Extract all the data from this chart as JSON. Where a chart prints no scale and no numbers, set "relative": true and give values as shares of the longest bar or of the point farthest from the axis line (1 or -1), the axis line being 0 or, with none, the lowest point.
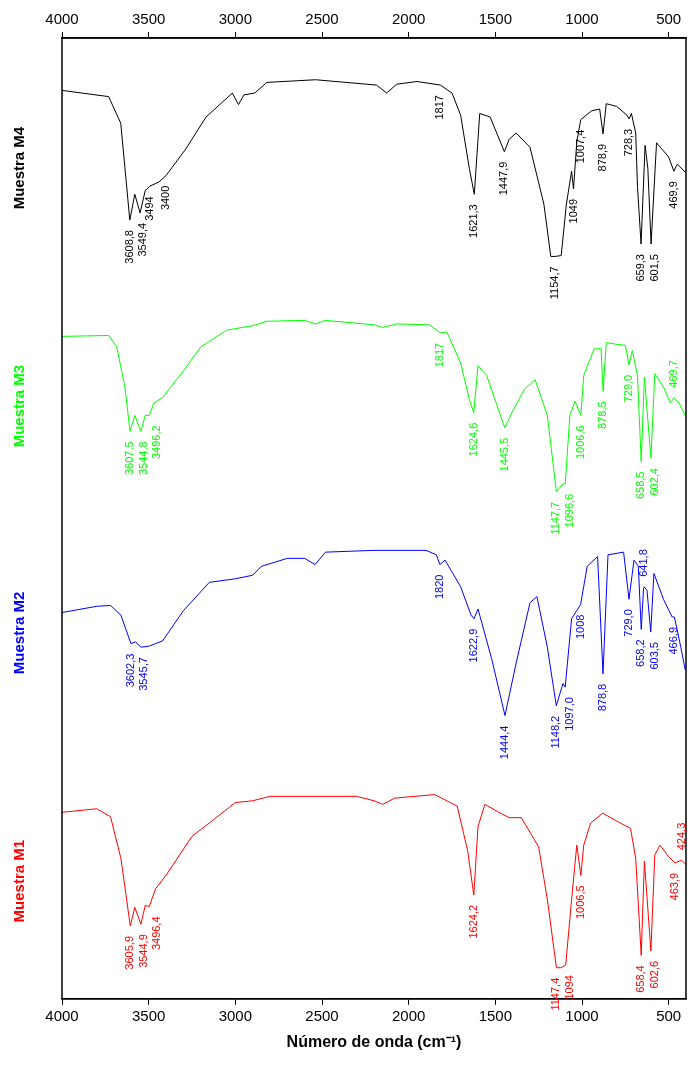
{
  "chart_data": {
    "type": "line",
    "relative": true,
    "xlabel": "Número de onda (cm⁻¹)",
    "xlim": [
      4000,
      400
    ],
    "xticks": [
      4000,
      3500,
      3000,
      2500,
      2000,
      1500,
      1000,
      500
    ],
    "x2lim": [
      4000,
      400
    ],
    "x2ticks": [
      4000,
      3500,
      3000,
      2500,
      2000,
      1500,
      1000,
      500
    ],
    "legend": false,
    "series": [
      {
        "name": "Muestra M4",
        "color": "#000000",
        "x": [
          4000,
          3731,
          3661,
          3608.8,
          3580,
          3549.4,
          3520,
          3494,
          3440,
          3400,
          3286,
          3169,
          3017,
          2982,
          2950,
          2888,
          2818,
          2537,
          2186,
          2127,
          2069,
          1952,
          1817,
          1750,
          1700,
          1650,
          1621.3,
          1590,
          1530,
          1447.9,
          1420,
          1380,
          1300,
          1220,
          1180,
          1154.7,
          1120,
          1090,
          1060,
          1049,
          1030,
          1007.4,
          945,
          898,
          878.9,
          860,
          800,
          740,
          728.3,
          715,
          690,
          680,
          659.3,
          636,
          620,
          601.5,
          570,
          500,
          469.9,
          450,
          400
        ],
        "values": [
          0.988,
          0.981,
          0.951,
          0.842,
          0.871,
          0.85,
          0.875,
          0.88,
          0.885,
          0.892,
          0.922,
          0.958,
          0.985,
          0.972,
          0.983,
          0.985,
          0.997,
          1.0,
          0.994,
          0.985,
          0.995,
          0.998,
          0.994,
          0.985,
          0.96,
          0.9,
          0.871,
          0.962,
          0.958,
          0.919,
          0.933,
          0.94,
          0.924,
          0.86,
          0.801,
          0.801,
          0.802,
          0.86,
          0.897,
          0.877,
          0.93,
          0.955,
          0.965,
          0.967,
          0.939,
          0.973,
          0.97,
          0.96,
          0.956,
          0.962,
          0.94,
          0.88,
          0.815,
          0.926,
          0.9,
          0.815,
          0.929,
          0.913,
          0.897,
          0.905,
          0.895
        ]
      },
      {
        "name": "Muestra M3",
        "color": "#00ff00",
        "x": [
          4000,
          3731,
          3684,
          3637,
          3607.5,
          3580,
          3544.8,
          3520,
          3496.2,
          3470,
          3420,
          3300,
          3200,
          3050,
          2900,
          2820,
          2600,
          2540,
          2480,
          2200,
          2150,
          2070,
          1880,
          1817,
          1780,
          1700,
          1650,
          1624.6,
          1600,
          1550,
          1445.5,
          1400,
          1330,
          1270,
          1200,
          1147.7,
          1110,
          1096.6,
          1070,
          1040,
          1006.6,
          990,
          930,
          890,
          878.5,
          860,
          800,
          750,
          729.0,
          710,
          680,
          658.5,
          640,
          602.4,
          580,
          530,
          490,
          469.7,
          440,
          400
        ],
        "values": [
          0.711,
          0.712,
          0.699,
          0.654,
          0.604,
          0.622,
          0.604,
          0.622,
          0.622,
          0.636,
          0.642,
          0.672,
          0.699,
          0.718,
          0.723,
          0.728,
          0.729,
          0.725,
          0.729,
          0.724,
          0.721,
          0.725,
          0.724,
          0.715,
          0.716,
          0.681,
          0.64,
          0.625,
          0.678,
          0.667,
          0.608,
          0.627,
          0.652,
          0.662,
          0.622,
          0.536,
          0.545,
          0.545,
          0.622,
          0.638,
          0.622,
          0.667,
          0.697,
          0.697,
          0.649,
          0.704,
          0.702,
          0.701,
          0.679,
          0.695,
          0.667,
          0.57,
          0.665,
          0.574,
          0.669,
          0.654,
          0.636,
          0.642,
          0.636,
          0.62
        ]
      },
      {
        "name": "Muestra M2",
        "color": "#0000ff",
        "x": [
          4000,
          3800,
          3720,
          3660,
          3602.3,
          3575,
          3545.7,
          3500,
          3420,
          3300,
          3150,
          3000,
          2900,
          2850,
          2700,
          2600,
          2540,
          2480,
          2200,
          1900,
          1840,
          1820,
          1790,
          1700,
          1640,
          1622.9,
          1600,
          1520,
          1444.4,
          1380,
          1300,
          1260,
          1200,
          1148.2,
          1110,
          1097.0,
          1060,
          1008,
          970,
          910,
          878.8,
          850,
          760,
          729.0,
          700,
          675,
          658.2,
          645,
          641.8,
          625,
          603.5,
          585,
          530,
          480,
          466.9,
          430,
          405
        ],
        "values": [
          0.4,
          0.407,
          0.408,
          0.397,
          0.365,
          0.367,
          0.361,
          0.362,
          0.368,
          0.402,
          0.434,
          0.438,
          0.442,
          0.452,
          0.461,
          0.461,
          0.454,
          0.468,
          0.47,
          0.47,
          0.465,
          0.454,
          0.459,
          0.429,
          0.397,
          0.393,
          0.404,
          0.347,
          0.284,
          0.343,
          0.411,
          0.418,
          0.361,
          0.295,
          0.32,
          0.316,
          0.393,
          0.409,
          0.452,
          0.463,
          0.331,
          0.465,
          0.468,
          0.415,
          0.459,
          0.452,
          0.381,
          0.427,
          0.429,
          0.425,
          0.378,
          0.444,
          0.415,
          0.395,
          0.395,
          0.361,
          0.336
        ]
      },
      {
        "name": "Muestra M1",
        "color": "#ff0000",
        "x": [
          4000,
          3800,
          3720,
          3660,
          3605.9,
          3580,
          3544.9,
          3520,
          3496.4,
          3460,
          3400,
          3250,
          3150,
          3000,
          2900,
          2800,
          2300,
          2200,
          2150,
          2080,
          1850,
          1720,
          1660,
          1624.2,
          1600,
          1560,
          1480,
          1420,
          1350,
          1250,
          1200,
          1147.4,
          1120,
          1094,
          1060,
          1030,
          1006.5,
          990,
          950,
          880,
          780,
          720,
          690,
          658.4,
          640,
          602.6,
          580,
          550,
          500,
          463.9,
          440,
          424.3,
          400
        ],
        "values": [
          0.175,
          0.179,
          0.17,
          0.123,
          0.047,
          0.068,
          0.049,
          0.07,
          0.069,
          0.089,
          0.104,
          0.148,
          0.163,
          0.186,
          0.188,
          0.193,
          0.193,
          0.188,
          0.184,
          0.191,
          0.195,
          0.182,
          0.132,
          0.082,
          0.159,
          0.184,
          0.175,
          0.169,
          0.169,
          0.136,
          0.077,
          0,
          0,
          0.003,
          0.077,
          0.138,
          0.104,
          0.138,
          0.163,
          0.174,
          0.163,
          0.157,
          0.123,
          0.014,
          0.12,
          0.019,
          0.127,
          0.138,
          0.125,
          0.118,
          0.12,
          0.121,
          0.116
        ]
      }
    ],
    "annotations": [
      {
        "text": "3608,8",
        "x": 3608.8,
        "y": 0.842
      },
      {
        "text": "3549,4",
        "x": 3549.4,
        "y": 0.85
      },
      {
        "text": "3494",
        "x": 3494,
        "y": 0.88
      },
      {
        "text": "3400",
        "x": 3400,
        "y": 0.892
      },
      {
        "text": "1817",
        "x": 1817,
        "y": 0.994
      },
      {
        "text": "1621,3",
        "x": 1621.3,
        "y": 0.871
      },
      {
        "text": "1447,9",
        "x": 1447.9,
        "y": 0.919
      },
      {
        "text": "1154,7",
        "x": 1154.7,
        "y": 0.801
      },
      {
        "text": "1049",
        "x": 1049,
        "y": 0.877
      },
      {
        "text": "1007,4",
        "x": 1007.4,
        "y": 0.955
      },
      {
        "text": "878,9",
        "x": 878.9,
        "y": 0.939
      },
      {
        "text": "728,3",
        "x": 728.3,
        "y": 0.956
      },
      {
        "text": "659,3",
        "x": 659.3,
        "y": 0.815
      },
      {
        "text": "601,5",
        "x": 601.5,
        "y": 0.815
      },
      {
        "text": "469,9",
        "x": 469.9,
        "y": 0.897
      },
      {
        "text": "3607,5",
        "x": 3607.5,
        "y": 0.604
      },
      {
        "text": "3544,8",
        "x": 3544.8,
        "y": 0.604
      },
      {
        "text": "3496,2",
        "x": 3496.2,
        "y": 0.622
      },
      {
        "text": "1817",
        "x": 1817,
        "y": 0.715
      },
      {
        "text": "1624,6",
        "x": 1624.6,
        "y": 0.625
      },
      {
        "text": "1445,5",
        "x": 1445.5,
        "y": 0.608
      },
      {
        "text": "1147,7",
        "x": 1147.7,
        "y": 0.536
      },
      {
        "text": "1096,6",
        "x": 1096.6,
        "y": 0.545
      },
      {
        "text": "1006,6",
        "x": 1006.6,
        "y": 0.622
      },
      {
        "text": "878,5",
        "x": 878.5,
        "y": 0.649
      },
      {
        "text": "729,0",
        "x": 729.0,
        "y": 0.679
      },
      {
        "text": "658,5",
        "x": 658.5,
        "y": 0.57
      },
      {
        "text": "602,4",
        "x": 602.4,
        "y": 0.574
      },
      {
        "text": "469,7",
        "x": 469.7,
        "y": 0.642
      },
      {
        "text": "3602,3",
        "x": 3602.3,
        "y": 0.365
      },
      {
        "text": "3545,7",
        "x": 3545.7,
        "y": 0.361
      },
      {
        "text": "1820",
        "x": 1820,
        "y": 0.454
      },
      {
        "text": "1622,9",
        "x": 1622.9,
        "y": 0.393
      },
      {
        "text": "1444,4",
        "x": 1444.4,
        "y": 0.284
      },
      {
        "text": "1148,2",
        "x": 1148.2,
        "y": 0.295
      },
      {
        "text": "1097,0",
        "x": 1097.0,
        "y": 0.316
      },
      {
        "text": "1008",
        "x": 1008,
        "y": 0.409
      },
      {
        "text": "878,8",
        "x": 878.8,
        "y": 0.331
      },
      {
        "text": "729,0",
        "x": 729.0,
        "y": 0.415
      },
      {
        "text": "658,2",
        "x": 658.2,
        "y": 0.381
      },
      {
        "text": "641,8",
        "x": 641.8,
        "y": 0.429
      },
      {
        "text": "603,5",
        "x": 603.5,
        "y": 0.378
      },
      {
        "text": "466,9",
        "x": 466.9,
        "y": 0.395
      },
      {
        "text": "3605,9",
        "x": 3605.9,
        "y": 0.047
      },
      {
        "text": "3544,9",
        "x": 3544.9,
        "y": 0.049
      },
      {
        "text": "3496,4",
        "x": 3496.4,
        "y": 0.069
      },
      {
        "text": "1624,2",
        "x": 1624.2,
        "y": 0.082
      },
      {
        "text": "1147,4",
        "x": 1147.4,
        "y": 0
      },
      {
        "text": "1094",
        "x": 1094,
        "y": 0.003
      },
      {
        "text": "1006,5",
        "x": 1006.5,
        "y": 0.104
      },
      {
        "text": "658,4",
        "x": 658.4,
        "y": 0.014
      },
      {
        "text": "602,6",
        "x": 602.6,
        "y": 0.019
      },
      {
        "text": "463,9",
        "x": 463.9,
        "y": 0.118
      },
      {
        "text": "424,3",
        "x": 424.3,
        "y": 0.121
      }
    ]
  }
}
